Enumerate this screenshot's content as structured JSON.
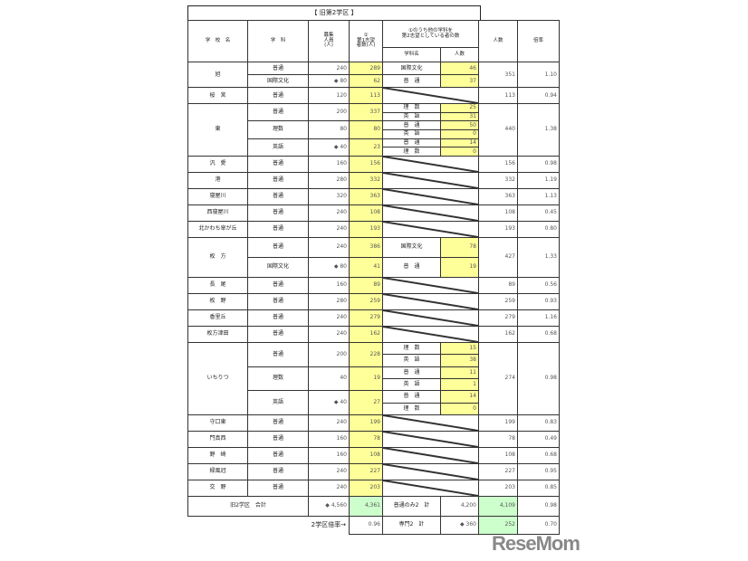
{
  "title": "【 旧第2学区 】",
  "headers": {
    "school": "学　校　名",
    "course": "学　科",
    "capacity": "募集\n人員\n(人)",
    "first": "①\n第1志望\n者数(人)",
    "second": "①のうち他の学科を\n第2志望としている者の数",
    "second_name": "学科名",
    "second_count": "人数",
    "total": "人数",
    "ratio": "倍率"
  },
  "schools": [
    {
      "name": "旭",
      "total": "351",
      "ratio": "1.10",
      "courses": [
        {
          "name": "普通",
          "capacity": "240",
          "first": "289",
          "second": [
            {
              "name": "国際文化",
              "count": "46"
            }
          ]
        },
        {
          "name": "国際文化",
          "capacity": "◆ 80",
          "first": "62",
          "second": [
            {
              "name": "普　通",
              "count": "37"
            }
          ]
        }
      ]
    },
    {
      "name": "桜　宮",
      "total": "113",
      "ratio": "0.94",
      "courses": [
        {
          "name": "普通",
          "capacity": "120",
          "first": "113",
          "second": []
        }
      ]
    },
    {
      "name": "東",
      "total": "440",
      "ratio": "1.38",
      "courses": [
        {
          "name": "普通",
          "capacity": "200",
          "first": "337",
          "second": [
            {
              "name": "理　数",
              "count": "25"
            },
            {
              "name": "英　語",
              "count": "31"
            }
          ]
        },
        {
          "name": "理数",
          "capacity": "80",
          "first": "80",
          "second": [
            {
              "name": "普　通",
              "count": "50"
            },
            {
              "name": "英　語",
              "count": "0"
            }
          ]
        },
        {
          "name": "英語",
          "capacity": "◆ 40",
          "first": "23",
          "second": [
            {
              "name": "普　通",
              "count": "14"
            },
            {
              "name": "理　数",
              "count": "0"
            }
          ]
        }
      ]
    },
    {
      "name": "汎　愛",
      "total": "156",
      "ratio": "0.98",
      "courses": [
        {
          "name": "普通",
          "capacity": "160",
          "first": "156",
          "second": []
        }
      ]
    },
    {
      "name": "港",
      "total": "332",
      "ratio": "1.19",
      "courses": [
        {
          "name": "普通",
          "capacity": "280",
          "first": "332",
          "second": []
        }
      ]
    },
    {
      "name": "寝屋川",
      "total": "363",
      "ratio": "1.13",
      "courses": [
        {
          "name": "普通",
          "capacity": "320",
          "first": "363",
          "second": []
        }
      ]
    },
    {
      "name": "西寝屋川",
      "total": "108",
      "ratio": "0.45",
      "courses": [
        {
          "name": "普通",
          "capacity": "240",
          "first": "108",
          "second": []
        }
      ]
    },
    {
      "name": "北かわち皐が丘",
      "total": "193",
      "ratio": "0.80",
      "courses": [
        {
          "name": "普通",
          "capacity": "240",
          "first": "193",
          "second": []
        }
      ]
    },
    {
      "name": "枚　方",
      "total": "427",
      "ratio": "1.33",
      "courses": [
        {
          "name": "普通",
          "capacity": "240",
          "first": "386",
          "second": [
            {
              "name": "国際文化",
              "count": "78"
            }
          ]
        },
        {
          "name": "国際文化",
          "capacity": "◆ 80",
          "first": "41",
          "second": [
            {
              "name": "普　通",
              "count": "19"
            }
          ]
        }
      ]
    },
    {
      "name": "長　尾",
      "total": "89",
      "ratio": "0.56",
      "courses": [
        {
          "name": "普通",
          "capacity": "160",
          "first": "89",
          "second": []
        }
      ]
    },
    {
      "name": "枚　野",
      "total": "259",
      "ratio": "0.93",
      "courses": [
        {
          "name": "普通",
          "capacity": "280",
          "first": "259",
          "second": []
        }
      ]
    },
    {
      "name": "香里丘",
      "total": "279",
      "ratio": "1.16",
      "courses": [
        {
          "name": "普通",
          "capacity": "240",
          "first": "279",
          "second": []
        }
      ]
    },
    {
      "name": "枚方津田",
      "total": "162",
      "ratio": "0.68",
      "courses": [
        {
          "name": "普通",
          "capacity": "240",
          "first": "162",
          "second": []
        }
      ]
    },
    {
      "name": "いちりつ",
      "total": "274",
      "ratio": "0.98",
      "courses": [
        {
          "name": "普通",
          "capacity": "200",
          "first": "228",
          "second": [
            {
              "name": "理　数",
              "count": "15"
            },
            {
              "name": "英　語",
              "count": "38"
            }
          ]
        },
        {
          "name": "理数",
          "capacity": "40",
          "first": "19",
          "second": [
            {
              "name": "普　通",
              "count": "11"
            },
            {
              "name": "英　語",
              "count": "1"
            }
          ]
        },
        {
          "name": "英語",
          "capacity": "◆ 40",
          "first": "27",
          "second": [
            {
              "name": "普　通",
              "count": "14"
            },
            {
              "name": "理　数",
              "count": "0"
            }
          ]
        }
      ]
    },
    {
      "name": "守口東",
      "total": "199",
      "ratio": "0.83",
      "courses": [
        {
          "name": "普通",
          "capacity": "240",
          "first": "199",
          "second": []
        }
      ]
    },
    {
      "name": "門真西",
      "total": "78",
      "ratio": "0.49",
      "courses": [
        {
          "name": "普通",
          "capacity": "160",
          "first": "78",
          "second": []
        }
      ]
    },
    {
      "name": "野　崎",
      "total": "108",
      "ratio": "0.68",
      "courses": [
        {
          "name": "普通",
          "capacity": "160",
          "first": "108",
          "second": []
        }
      ]
    },
    {
      "name": "緑風冠",
      "total": "227",
      "ratio": "0.95",
      "courses": [
        {
          "name": "普通",
          "capacity": "240",
          "first": "227",
          "second": []
        }
      ]
    },
    {
      "name": "交　野",
      "total": "203",
      "ratio": "0.85",
      "courses": [
        {
          "name": "普通",
          "capacity": "240",
          "first": "203",
          "second": []
        }
      ]
    }
  ],
  "totals": {
    "label": "旧2学区　合計",
    "capacity": "◆ 4,560",
    "first": "4,361",
    "general_label": "普通のみ2　計",
    "general_capacity": "4,200",
    "general_total": "4,109",
    "ratio": "0.98"
  },
  "bottom": {
    "label": "2学区倍率→",
    "district_ratio": "0.96",
    "special_label": "専門2　計",
    "special_capacity": "◆ 360",
    "special_total": "252",
    "special_ratio": "0.70"
  },
  "colors": {
    "first_choice": "#ffff99",
    "totals": "#ccffcc"
  },
  "logo": "ReseMom"
}
